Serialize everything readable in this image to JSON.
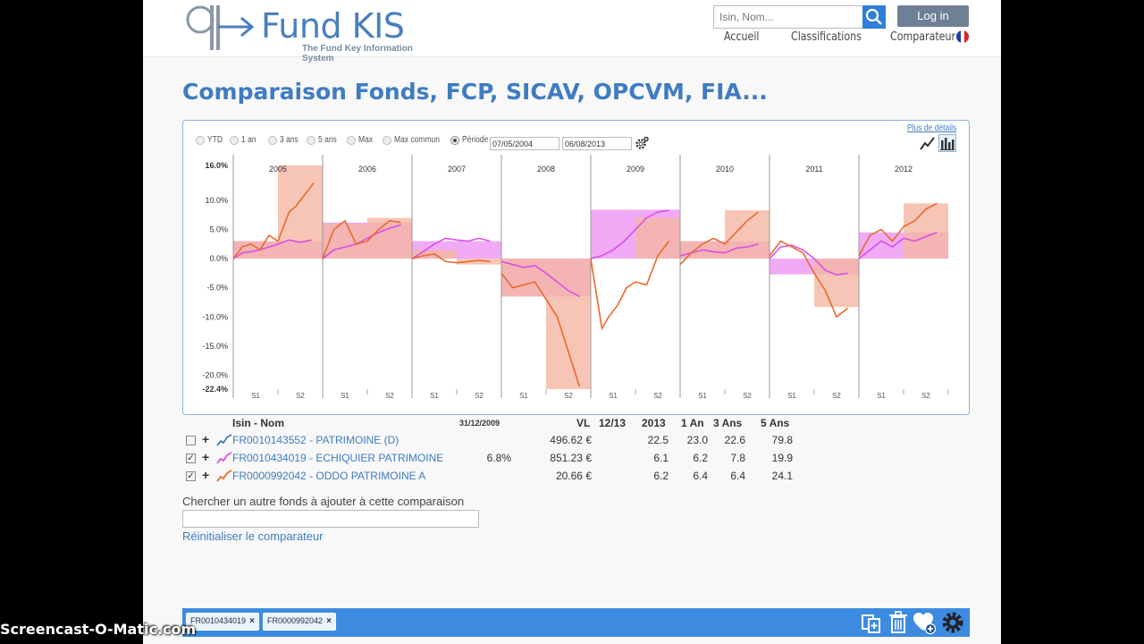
{
  "header": {
    "logo_title": "Fund KIS",
    "logo_subtitle": "The Fund Key Information System",
    "search_placeholder": "Isin, Nom...",
    "login_label": "Log in",
    "nav": [
      "Accueil",
      "Classifications",
      "Comparateur"
    ],
    "flag_colors": [
      "#1f3fa0",
      "#ffffff",
      "#d8252c"
    ]
  },
  "page_title": "Comparaison Fonds, FCP, SICAV, OPCVM, FIA...",
  "chart_panel": {
    "periods": [
      {
        "label": "YTD",
        "selected": false
      },
      {
        "label": "1 an",
        "selected": false
      },
      {
        "label": "3 ans",
        "selected": false
      },
      {
        "label": "5 ans",
        "selected": false
      },
      {
        "label": "Max",
        "selected": false
      },
      {
        "label": "Max commun",
        "selected": false
      },
      {
        "label": "Période",
        "selected": true
      }
    ],
    "date_from": "07/05/2004",
    "date_to": "06/08/2013",
    "more_details": "Plus de détails",
    "icons": [
      "settings-icon",
      "line-chart-icon",
      "bar-chart-icon"
    ]
  },
  "chart_data": {
    "type": "bar",
    "ylim": [
      -22.4,
      16.0
    ],
    "yticks": [
      "16.0%",
      "10.0%",
      "5.0%",
      "0.0%",
      "-5.0%",
      "-10.0%",
      "-15.0%",
      "-20.0%",
      "-22.4%"
    ],
    "ytick_values": [
      16.0,
      10.0,
      5.0,
      0.0,
      -5.0,
      -10.0,
      -15.0,
      -20.0,
      -22.4
    ],
    "years": [
      "2005",
      "2006",
      "2007",
      "2008",
      "2009",
      "2010",
      "2011",
      "2012"
    ],
    "halves": [
      "S1",
      "S2"
    ],
    "grid": true,
    "series": [
      {
        "name": "FR0010434019 - ECHIQUIER PATRIMOINE",
        "color": "#d94fe6",
        "bar_color": "#ee9bf5",
        "semester_values": [
          3.0,
          3.0,
          6.2,
          6.2,
          3.0,
          3.0,
          -6.5,
          -6.5,
          8.4,
          8.4,
          3.0,
          3.0,
          -2.7,
          -2.7,
          4.5,
          4.5
        ],
        "line": [
          [
            0,
            0
          ],
          [
            4,
            1.0
          ],
          [
            8,
            1.2
          ],
          [
            12,
            1.5
          ],
          [
            16,
            2.0
          ],
          [
            20,
            2.5
          ],
          [
            25,
            3.2
          ],
          [
            30,
            2.8
          ],
          [
            35,
            3.2
          ],
          [
            40,
            0.0
          ],
          [
            45,
            1.5
          ],
          [
            50,
            2.0
          ],
          [
            55,
            2.5
          ],
          [
            60,
            3.5
          ],
          [
            65,
            4.5
          ],
          [
            70,
            5.2
          ],
          [
            75,
            5.8
          ],
          [
            80,
            0.0
          ],
          [
            85,
            1.2
          ],
          [
            90,
            2.5
          ],
          [
            95,
            3.5
          ],
          [
            100,
            3.2
          ],
          [
            105,
            3.0
          ],
          [
            110,
            3.5
          ],
          [
            115,
            3.0
          ],
          [
            120,
            -0.5
          ],
          [
            125,
            -1.0
          ],
          [
            130,
            -1.5
          ],
          [
            135,
            -1.2
          ],
          [
            140,
            -2.5
          ],
          [
            145,
            -4.0
          ],
          [
            150,
            -5.5
          ],
          [
            155,
            -6.5
          ],
          [
            160,
            0.0
          ],
          [
            165,
            0.5
          ],
          [
            170,
            1.5
          ],
          [
            175,
            3.0
          ],
          [
            180,
            5.0
          ],
          [
            185,
            7.0
          ],
          [
            190,
            8.0
          ],
          [
            195,
            8.3
          ],
          [
            200,
            0.5
          ],
          [
            205,
            1.0
          ],
          [
            210,
            1.5
          ],
          [
            215,
            1.2
          ],
          [
            220,
            1.0
          ],
          [
            225,
            1.8
          ],
          [
            230,
            2.0
          ],
          [
            235,
            2.5
          ],
          [
            240,
            0.0
          ],
          [
            245,
            2.0
          ],
          [
            250,
            2.3
          ],
          [
            255,
            1.5
          ],
          [
            260,
            0.0
          ],
          [
            265,
            -2.0
          ],
          [
            270,
            -2.8
          ],
          [
            275,
            -2.5
          ],
          [
            280,
            0.0
          ],
          [
            285,
            1.5
          ],
          [
            290,
            3.0
          ],
          [
            295,
            2.0
          ],
          [
            300,
            3.5
          ],
          [
            305,
            3.0
          ],
          [
            310,
            3.8
          ],
          [
            315,
            4.5
          ]
        ]
      },
      {
        "name": "FR0000992042 - ODDO PATRIMOINE A",
        "color": "#e96a2d",
        "bar_color": "#f5b7a2",
        "semester_values": [
          3.0,
          16.0,
          6.0,
          7.0,
          1.5,
          -1.0,
          -6.5,
          -22.4,
          0.0,
          7.0,
          3.0,
          8.3,
          0.0,
          -8.3,
          0.0,
          9.5
        ],
        "line": [
          [
            0,
            0
          ],
          [
            4,
            2.0
          ],
          [
            8,
            2.5
          ],
          [
            12,
            1.5
          ],
          [
            16,
            4.0
          ],
          [
            20,
            3.0
          ],
          [
            25,
            8.0
          ],
          [
            28,
            9.0
          ],
          [
            32,
            11.0
          ],
          [
            36,
            13.0
          ],
          [
            40,
            0.0
          ],
          [
            45,
            5.0
          ],
          [
            50,
            6.5
          ],
          [
            55,
            2.5
          ],
          [
            60,
            3.0
          ],
          [
            65,
            5.0
          ],
          [
            70,
            6.5
          ],
          [
            75,
            6.2
          ],
          [
            80,
            0.0
          ],
          [
            85,
            0.5
          ],
          [
            90,
            0.8
          ],
          [
            95,
            -0.5
          ],
          [
            100,
            -0.7
          ],
          [
            105,
            -0.5
          ],
          [
            110,
            -0.3
          ],
          [
            115,
            -0.5
          ],
          [
            120,
            -2.5
          ],
          [
            125,
            -5.0
          ],
          [
            130,
            -4.5
          ],
          [
            135,
            -4.0
          ],
          [
            140,
            -7.0
          ],
          [
            145,
            -10.0
          ],
          [
            150,
            -16.0
          ],
          [
            155,
            -22.0
          ],
          [
            160,
            0.0
          ],
          [
            165,
            -12.0
          ],
          [
            168,
            -10.0
          ],
          [
            172,
            -8.0
          ],
          [
            176,
            -5.0
          ],
          [
            180,
            -4.0
          ],
          [
            185,
            -4.5
          ],
          [
            190,
            0.5
          ],
          [
            195,
            3.0
          ],
          [
            200,
            -1.0
          ],
          [
            205,
            1.0
          ],
          [
            210,
            2.5
          ],
          [
            215,
            3.5
          ],
          [
            220,
            2.5
          ],
          [
            225,
            4.5
          ],
          [
            230,
            6.5
          ],
          [
            235,
            8.0
          ],
          [
            240,
            0.5
          ],
          [
            245,
            3.0
          ],
          [
            250,
            2.0
          ],
          [
            255,
            1.0
          ],
          [
            260,
            -2.5
          ],
          [
            265,
            -5.5
          ],
          [
            270,
            -10.0
          ],
          [
            275,
            -8.5
          ],
          [
            280,
            0.5
          ],
          [
            285,
            4.0
          ],
          [
            290,
            5.0
          ],
          [
            295,
            3.0
          ],
          [
            300,
            5.5
          ],
          [
            305,
            6.5
          ],
          [
            310,
            8.5
          ],
          [
            315,
            9.5
          ]
        ]
      }
    ]
  },
  "table": {
    "headers": {
      "name": "Isin - Nom",
      "date": "31/12/2009",
      "vl": "VL",
      "m12_13": "12/13",
      "y2013": "2013",
      "one_year": "1 An",
      "three_years": "3 Ans",
      "five_years": "5 Ans"
    },
    "rows": [
      {
        "checked": false,
        "check_glyph": "",
        "name": "FR0010143552 - PATRIMOINE (D)",
        "date_val": "",
        "vl": "496.62 €",
        "m12_13": "",
        "y2013": "22.5",
        "one_year": "23.0",
        "three_years": "22.6",
        "five_years": "79.8",
        "spark_color": "#3f7cc2"
      },
      {
        "checked": true,
        "check_glyph": "✓",
        "name": "FR0010434019 - ECHIQUIER PATRIMOINE",
        "date_val": "6.8%",
        "vl": "851.23 €",
        "m12_13": "",
        "y2013": "6.1",
        "one_year": "6.2",
        "three_years": "7.8",
        "five_years": "19.9",
        "spark_color": "#d94fe6"
      },
      {
        "checked": true,
        "check_glyph": "✓",
        "name": "FR0000992042 - ODDO PATRIMOINE A",
        "date_val": "",
        "vl": "20.66 €",
        "m12_13": "",
        "y2013": "6.2",
        "one_year": "6.4",
        "three_years": "6.4",
        "five_years": "24.1",
        "spark_color": "#e96a2d"
      }
    ]
  },
  "add_fund": {
    "label": "Chercher un autre fonds à ajouter à cette comparaison",
    "value": ""
  },
  "reset_label": "Réinitialiser le comparateur",
  "bottom_bar": {
    "chips": [
      "FR0010434019",
      "FR0000992042"
    ],
    "chip_close": "×",
    "tools": [
      "add-compare-icon",
      "trash-icon",
      "favorite-add-icon",
      "settings-icon"
    ]
  },
  "watermark": "Screencast-O-Matic.com"
}
